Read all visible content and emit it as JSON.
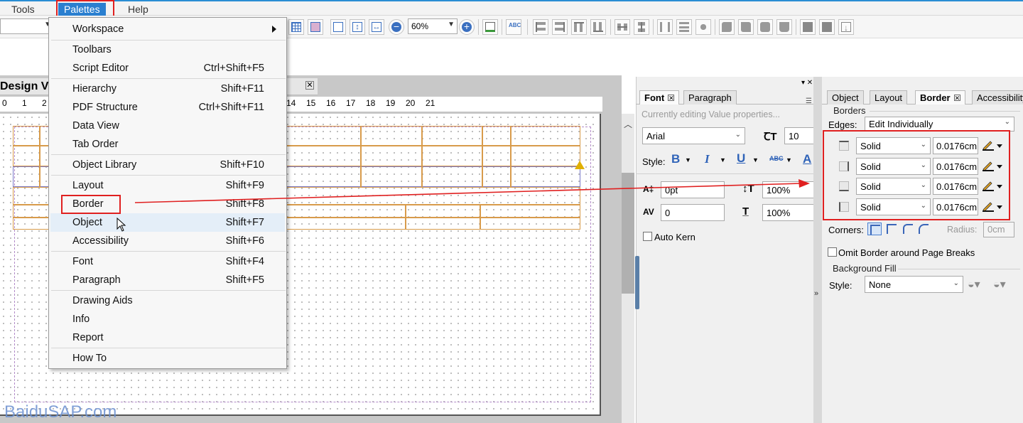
{
  "menubar": {
    "items": [
      "Tools",
      "Palettes",
      "Help"
    ]
  },
  "toolbar": {
    "zoom_value": "60%"
  },
  "design_view": {
    "title": "Design V",
    "ruler": [
      "0",
      "1",
      "2",
      "14",
      "15",
      "16",
      "17",
      "18",
      "19",
      "20",
      "21"
    ]
  },
  "palettes_menu": {
    "items": [
      {
        "label": "Workspace",
        "shortcut": "",
        "submenu": true
      },
      {
        "label": "Toolbars",
        "shortcut": ""
      },
      {
        "label": "Script Editor",
        "shortcut": "Ctrl+Shift+F5"
      },
      {
        "label": "Hierarchy",
        "shortcut": "Shift+F11"
      },
      {
        "label": "PDF Structure",
        "shortcut": "Ctrl+Shift+F11"
      },
      {
        "label": "Data View",
        "shortcut": ""
      },
      {
        "label": "Tab Order",
        "shortcut": ""
      },
      {
        "label": "Object Library",
        "shortcut": "Shift+F10"
      },
      {
        "label": "Layout",
        "shortcut": "Shift+F9"
      },
      {
        "label": "Border",
        "shortcut": "Shift+F8"
      },
      {
        "label": "Object",
        "shortcut": "Shift+F7"
      },
      {
        "label": "Accessibility",
        "shortcut": "Shift+F6"
      },
      {
        "label": "Font",
        "shortcut": "Shift+F4"
      },
      {
        "label": "Paragraph",
        "shortcut": "Shift+F5"
      },
      {
        "label": "Drawing Aids",
        "shortcut": ""
      },
      {
        "label": "Info",
        "shortcut": ""
      },
      {
        "label": "Report",
        "shortcut": ""
      },
      {
        "label": "How To",
        "shortcut": ""
      }
    ]
  },
  "font_panel": {
    "tabs": [
      "Font",
      "Paragraph"
    ],
    "hint": "Currently editing Value properties...",
    "font_name": "Arial",
    "font_size": "10",
    "style_label": "Style:",
    "baseline_shift": "0pt",
    "vertical_scale": "100%",
    "tracking": "0",
    "horizontal_scale": "100%",
    "auto_kern_label": "Auto Kern"
  },
  "border_panel": {
    "tabs": [
      "Object",
      "Layout",
      "Border",
      "Accessibility"
    ],
    "borders_group": "Borders",
    "edges_label": "Edges:",
    "edges_value": "Edit Individually",
    "edges": [
      {
        "style": "Solid",
        "width": "0.0176cm"
      },
      {
        "style": "Solid",
        "width": "0.0176cm"
      },
      {
        "style": "Solid",
        "width": "0.0176cm"
      },
      {
        "style": "Solid",
        "width": "0.0176cm"
      }
    ],
    "corners_label": "Corners:",
    "radius_label": "Radius:",
    "radius_value": "0cm",
    "omit_label": "Omit Border around Page Breaks",
    "background_fill_group": "Background Fill",
    "fill_style_label": "Style:",
    "fill_style_value": "None"
  },
  "watermark": "BaiduSAP.com",
  "colors": {
    "highlight_red": "#e02020",
    "menu_active": "#2a7fd0",
    "cell_orange": "#d89b4b",
    "cell_blue": "#7b7bc8"
  }
}
